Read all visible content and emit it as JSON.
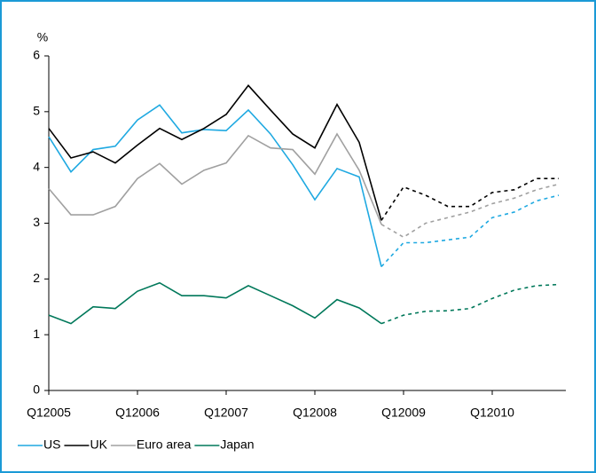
{
  "chart_data": {
    "type": "line",
    "y_label": "%",
    "categories": [
      "Q12005",
      null,
      null,
      null,
      "Q12006",
      null,
      null,
      null,
      "Q12007",
      null,
      null,
      null,
      "Q12008",
      null,
      null,
      null,
      "Q12009",
      null,
      null,
      null,
      "Q12010",
      null,
      null,
      null
    ],
    "dash_from": 15,
    "series": [
      {
        "name": "US",
        "color": "#1fa9e1",
        "values": [
          4.55,
          3.92,
          4.32,
          4.38,
          4.85,
          5.12,
          4.62,
          4.68,
          4.66,
          5.03,
          4.6,
          4.05,
          3.42,
          3.98,
          3.83,
          2.22,
          2.65,
          2.65,
          2.7,
          2.75,
          3.1,
          3.2,
          3.4,
          3.5
        ]
      },
      {
        "name": "UK",
        "color": "#000000",
        "values": [
          4.7,
          4.17,
          4.28,
          4.08,
          4.4,
          4.7,
          4.5,
          4.7,
          4.95,
          5.47,
          5.03,
          4.6,
          4.35,
          5.13,
          4.45,
          3.05,
          3.65,
          3.5,
          3.3,
          3.3,
          3.55,
          3.6,
          3.8,
          3.8
        ]
      },
      {
        "name": "Euro area",
        "color": "#a0a0a0",
        "values": [
          3.62,
          3.15,
          3.15,
          3.3,
          3.8,
          4.07,
          3.7,
          3.95,
          4.08,
          4.57,
          4.35,
          4.32,
          3.88,
          4.6,
          3.95,
          2.98,
          2.75,
          3.0,
          3.1,
          3.2,
          3.35,
          3.45,
          3.6,
          3.7
        ]
      },
      {
        "name": "Japan",
        "color": "#00785a",
        "values": [
          1.35,
          1.2,
          1.5,
          1.47,
          1.78,
          1.93,
          1.7,
          1.7,
          1.66,
          1.88,
          1.7,
          1.52,
          1.3,
          1.63,
          1.48,
          1.2,
          1.35,
          1.42,
          1.43,
          1.47,
          1.65,
          1.8,
          1.88,
          1.9
        ]
      }
    ],
    "ylim": [
      0,
      6
    ],
    "yticks": [
      0,
      1,
      2,
      3,
      4,
      5,
      6
    ],
    "grid": false
  }
}
